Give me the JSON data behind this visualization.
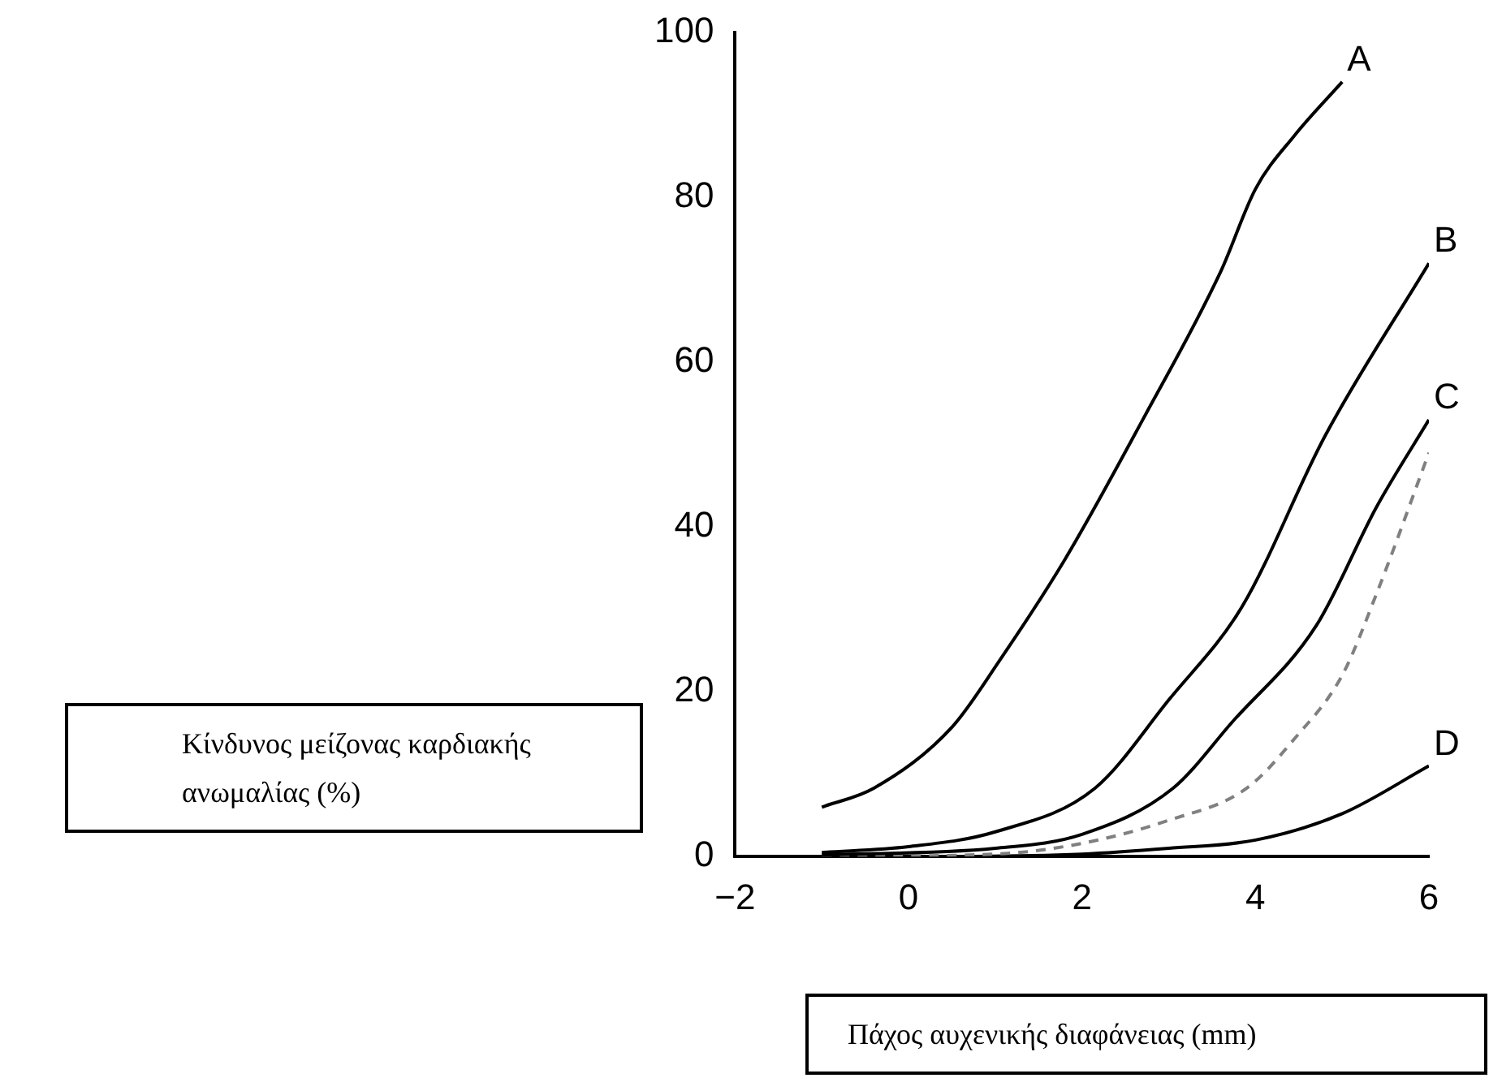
{
  "chart_data": {
    "type": "line",
    "xlabel": "Πάχος αυχενικής διαφάνειας (mm)",
    "ylabel": "Κίνδυνος μείζονας καρδιακής ανωμαλίας (%)",
    "xlim": [
      -2,
      6
    ],
    "ylim": [
      0,
      100
    ],
    "xticks": [
      -2,
      0,
      2,
      4,
      6
    ],
    "yticks": [
      0,
      20,
      40,
      60,
      80,
      100
    ],
    "grid": false,
    "legend": false,
    "marker": "none",
    "series": [
      {
        "name": "A",
        "color": "#000000",
        "x": [
          -1,
          -0.4,
          0.5,
          1.05,
          1.8,
          2.7,
          3.6,
          4.0,
          4.45,
          5.0
        ],
        "values": [
          6,
          8.3,
          15.7,
          23.8,
          36,
          53,
          71,
          81,
          87.5,
          94
        ]
      },
      {
        "name": "B",
        "color": "#000000",
        "x": [
          -1,
          0,
          1,
          2.15,
          3,
          3.85,
          4.8,
          6
        ],
        "values": [
          0.5,
          1.2,
          3,
          8.3,
          19,
          30.4,
          51,
          72
        ]
      },
      {
        "name": "C",
        "color": "#000000",
        "x": [
          -1,
          1,
          2,
          3.05,
          3.73,
          4.7,
          5.4,
          6
        ],
        "values": [
          0.2,
          1,
          2.7,
          8.3,
          16.3,
          28,
          42.5,
          53
        ]
      },
      {
        "color": "#808080",
        "line_style": "dashed",
        "x": [
          -1,
          1,
          2,
          3,
          3.9,
          4.45,
          5,
          5.4,
          6
        ],
        "values": [
          0,
          0.3,
          1.6,
          4.4,
          8.3,
          14.3,
          22,
          32,
          49
        ]
      },
      {
        "name": "D",
        "color": "#000000",
        "x": [
          -1,
          0,
          2,
          3,
          4,
          5,
          6
        ],
        "values": [
          0,
          0,
          0.3,
          1,
          2,
          5.2,
          11
        ]
      }
    ]
  }
}
